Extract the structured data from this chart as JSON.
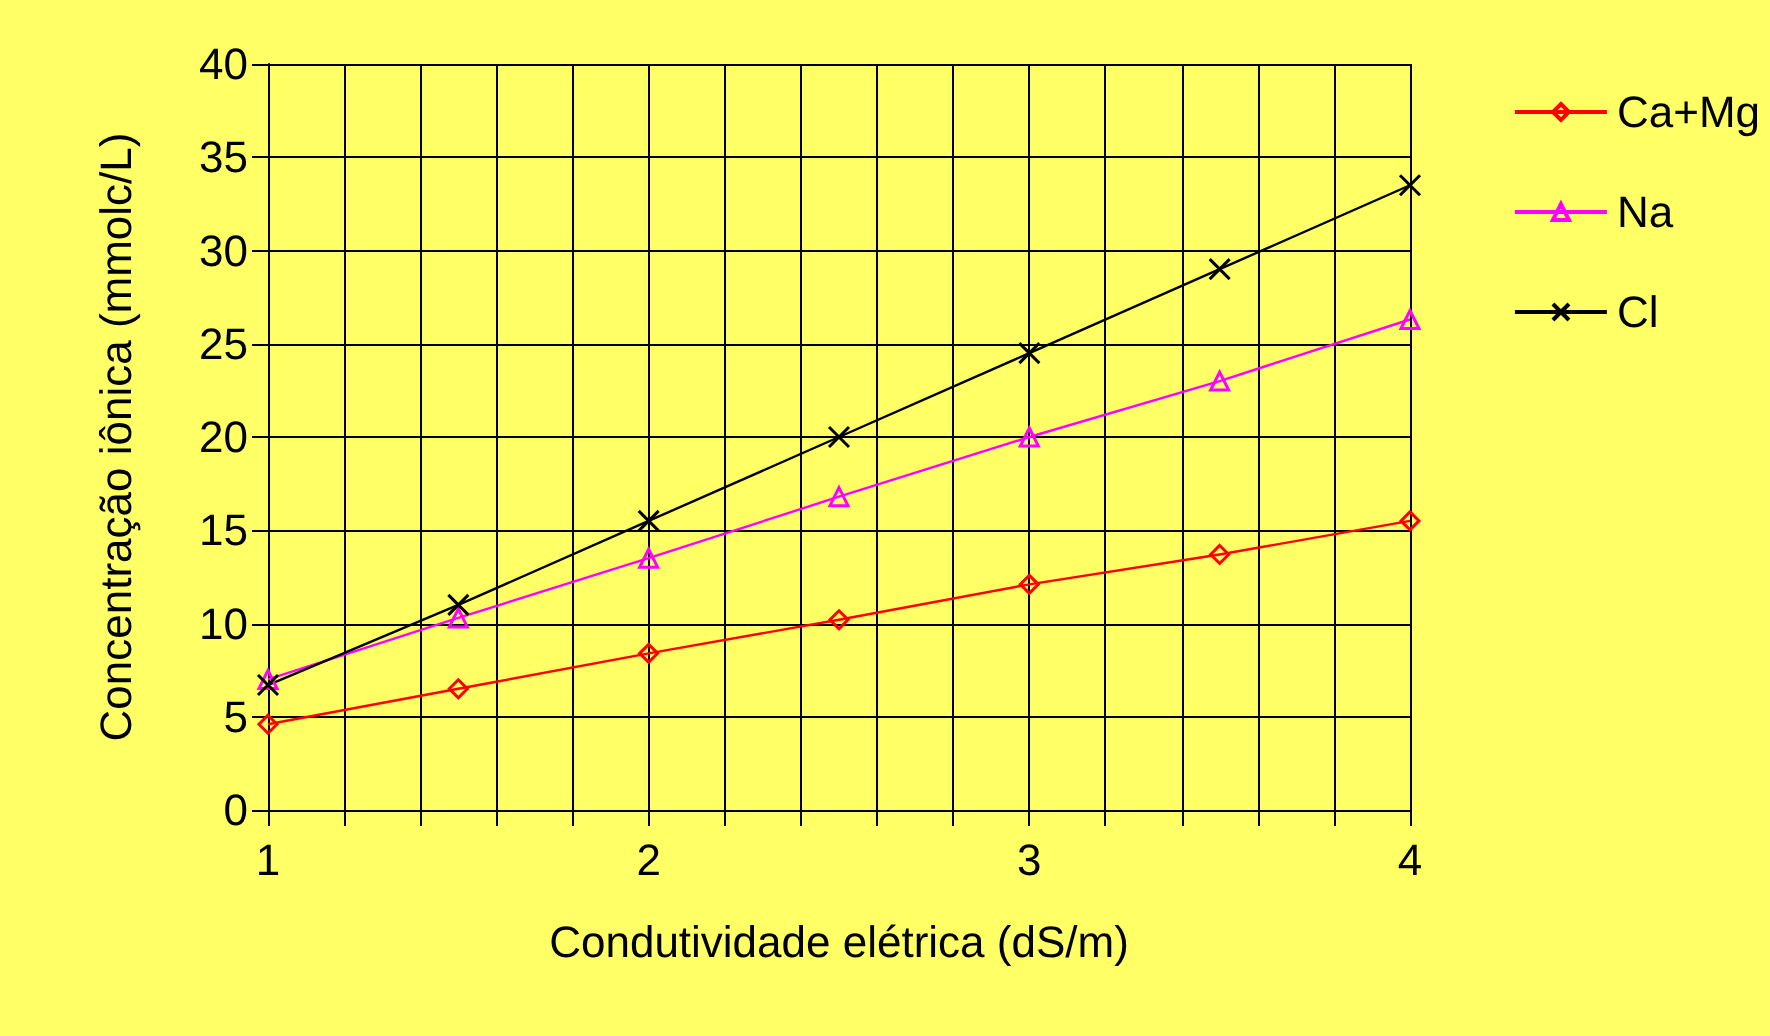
{
  "chart_data": {
    "type": "line",
    "xlabel": "Condutividade elétrica (dS/m)",
    "ylabel": "Concentração iônica (mmolc/L)",
    "x": [
      1,
      1.5,
      2,
      2.5,
      3,
      3.5,
      4
    ],
    "series": [
      {
        "name": "Ca+Mg",
        "color": "#ff0000",
        "marker": "diamond",
        "values": [
          4.6,
          6.5,
          8.4,
          10.2,
          12.1,
          13.7,
          15.5
        ]
      },
      {
        "name": "Na",
        "color": "#ff00ff",
        "marker": "triangle",
        "values": [
          7.0,
          10.3,
          13.5,
          16.8,
          20.0,
          23.0,
          26.3
        ]
      },
      {
        "name": "Cl",
        "color": "#000000",
        "marker": "cross",
        "values": [
          6.7,
          11.0,
          15.5,
          20.0,
          24.5,
          29.0,
          33.5
        ]
      }
    ],
    "xlim": [
      1,
      4
    ],
    "xticks": [
      1,
      {
        "value": 1.2,
        "label": null
      },
      {
        "value": 1.4,
        "label": null
      },
      {
        "value": 1.6,
        "label": null
      },
      {
        "value": 1.8,
        "label": null
      },
      2,
      {
        "value": 2.2,
        "label": null
      },
      {
        "value": 2.4,
        "label": null
      },
      {
        "value": 2.6,
        "label": null
      },
      {
        "value": 2.8,
        "label": null
      },
      3,
      {
        "value": 3.2,
        "label": null
      },
      {
        "value": 3.4,
        "label": null
      },
      {
        "value": 3.6,
        "label": null
      },
      {
        "value": 3.8,
        "label": null
      },
      4
    ],
    "ylim": [
      0,
      40
    ],
    "yticks": [
      0,
      5,
      10,
      15,
      20,
      25,
      30,
      35,
      40
    ],
    "grid": true,
    "legend": "top right",
    "line_style": "solid"
  }
}
